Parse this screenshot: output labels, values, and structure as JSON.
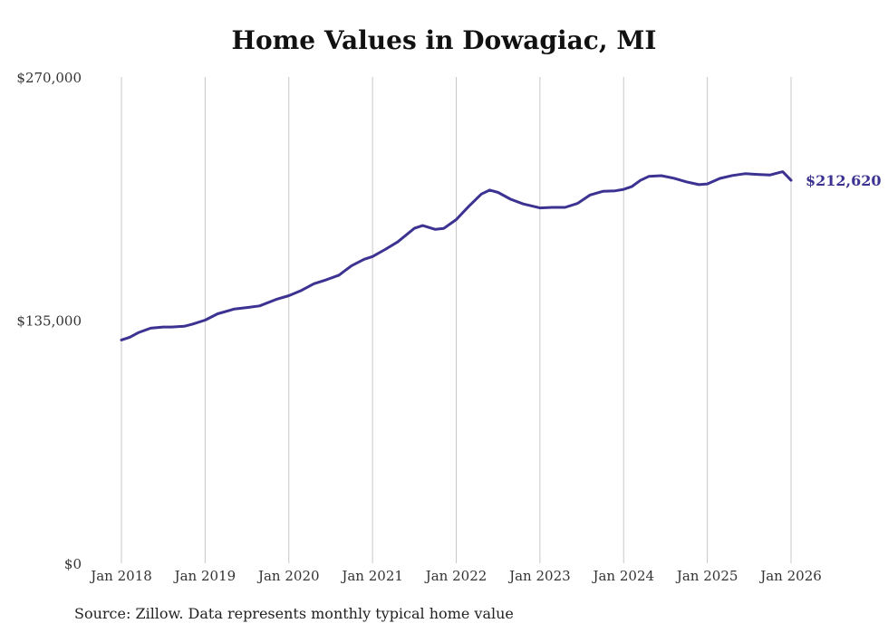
{
  "chart_data": {
    "type": "line",
    "title": "Home Values in Dowagiac, MI",
    "source": "Source: Zillow. Data represents monthly typical home value",
    "ylim": [
      0,
      270000
    ],
    "yticks": [
      0,
      135000,
      270000
    ],
    "ytick_labels": [
      "$0",
      "$135,000",
      "$270,000"
    ],
    "xlim": [
      2018,
      2026
    ],
    "xticks": [
      2018,
      2019,
      2020,
      2021,
      2022,
      2023,
      2024,
      2025,
      2026
    ],
    "xtick_labels": [
      "Jan 2018",
      "Jan 2019",
      "Jan 2020",
      "Jan 2021",
      "Jan 2022",
      "Jan 2023",
      "Jan 2024",
      "Jan 2025",
      "Jan 2026"
    ],
    "grid": "vertical",
    "line_color": "#3b3291",
    "end_label": "$212,620",
    "series": [
      {
        "name": "Typical home value",
        "x": [
          2018.0,
          2018.1,
          2018.2,
          2018.35,
          2018.5,
          2018.6,
          2018.75,
          2018.85,
          2019.0,
          2019.15,
          2019.35,
          2019.5,
          2019.65,
          2019.85,
          2020.0,
          2020.15,
          2020.3,
          2020.45,
          2020.6,
          2020.75,
          2020.9,
          2021.0,
          2021.15,
          2021.3,
          2021.5,
          2021.6,
          2021.75,
          2021.85,
          2022.0,
          2022.15,
          2022.3,
          2022.4,
          2022.5,
          2022.65,
          2022.8,
          2023.0,
          2023.15,
          2023.3,
          2023.45,
          2023.6,
          2023.75,
          2023.9,
          2024.0,
          2024.1,
          2024.2,
          2024.3,
          2024.45,
          2024.6,
          2024.75,
          2024.9,
          2025.0,
          2025.15,
          2025.3,
          2025.45,
          2025.6,
          2025.75,
          2025.9,
          2026.0
        ],
        "values": [
          124000,
          125500,
          128000,
          130500,
          131200,
          131200,
          131600,
          132800,
          135000,
          138500,
          141200,
          142000,
          142900,
          146500,
          148600,
          151500,
          155200,
          157400,
          160000,
          165200,
          168800,
          170300,
          174200,
          178400,
          186000,
          187500,
          185400,
          185900,
          190800,
          198200,
          205000,
          207200,
          205900,
          202100,
          199500,
          197300,
          197600,
          197600,
          199800,
          204500,
          206500,
          206800,
          207600,
          209200,
          212600,
          214800,
          215200,
          213800,
          211800,
          210200,
          210600,
          213700,
          215300,
          216300,
          215900,
          215600,
          217400,
          212620
        ]
      }
    ]
  }
}
